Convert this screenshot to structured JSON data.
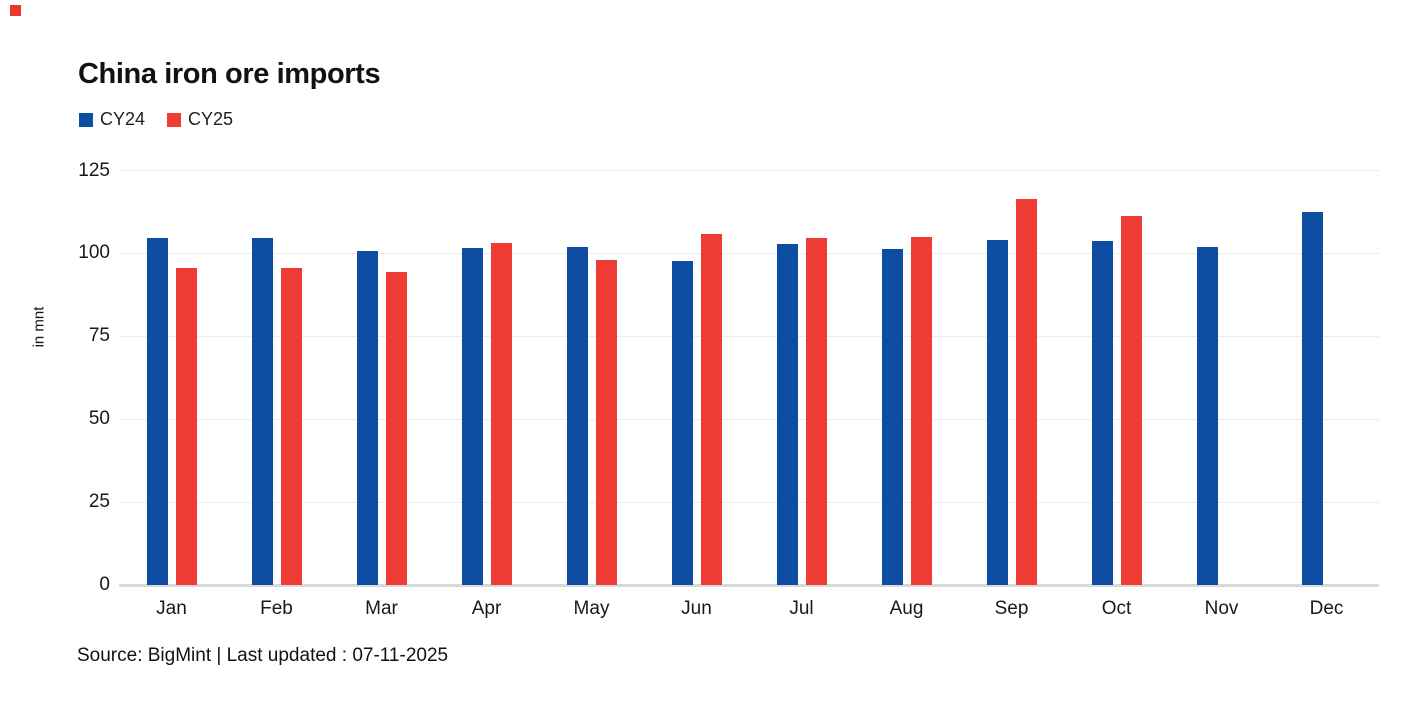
{
  "marker": {
    "color": "#e8392f"
  },
  "chart_data": {
    "type": "bar",
    "title": "China iron ore imports",
    "xlabel": "",
    "ylabel": "in mnt",
    "ylim": [
      0,
      125
    ],
    "yticks": [
      0,
      25,
      50,
      75,
      100,
      125
    ],
    "grid": true,
    "legend_position": "top-left",
    "categories": [
      "Jan",
      "Feb",
      "Mar",
      "Apr",
      "May",
      "Jun",
      "Jul",
      "Aug",
      "Sep",
      "Oct",
      "Nov",
      "Dec"
    ],
    "series": [
      {
        "name": "CY24",
        "color": "#0d4ea3",
        "values": [
          104.7,
          104.7,
          100.7,
          101.8,
          102.0,
          97.6,
          102.8,
          101.4,
          104.1,
          103.8,
          101.9,
          112.5
        ]
      },
      {
        "name": "CY25",
        "color": "#ee3b33",
        "values": [
          95.7,
          95.7,
          94.4,
          103.1,
          98.1,
          106.0,
          104.6,
          105.1,
          116.3,
          111.3,
          null,
          null
        ]
      }
    ]
  },
  "footer": {
    "source_text": "Source: BigMint | Last updated : 07-11-2025"
  }
}
